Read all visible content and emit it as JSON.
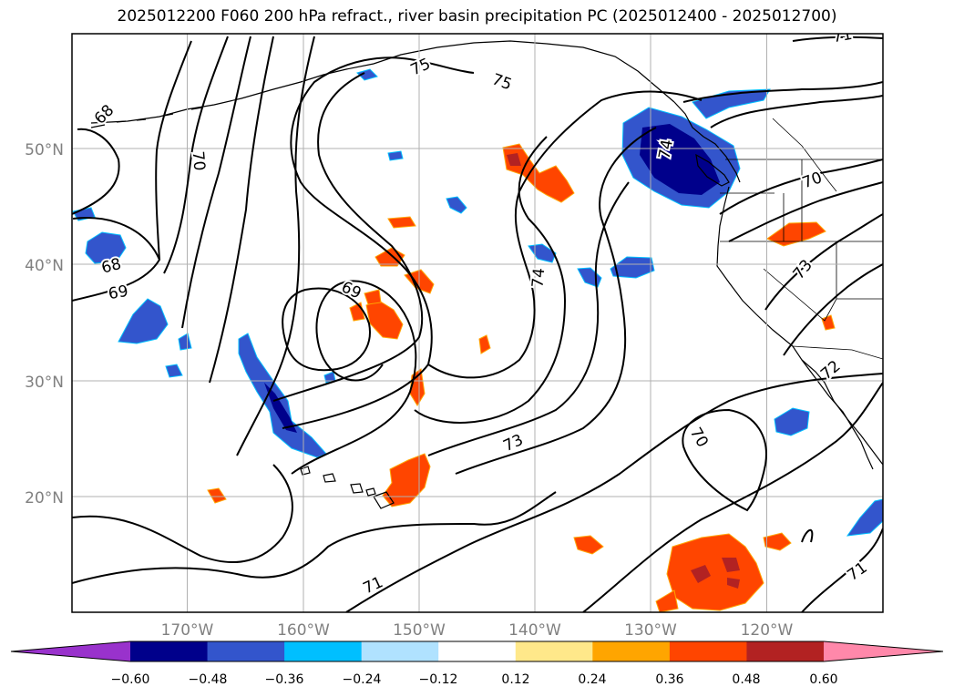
{
  "title": "2025012200 F060 200 hPa refract., river basin precipitation PC (2025012400 - 2025012700)",
  "map": {
    "lon_range": [
      -180,
      -110
    ],
    "lat_range": [
      10,
      60
    ],
    "lat_labels": [
      {
        "lat": 50,
        "text": "50°N"
      },
      {
        "lat": 40,
        "text": "40°N"
      },
      {
        "lat": 30,
        "text": "30°N"
      },
      {
        "lat": 20,
        "text": "20°N"
      }
    ],
    "lon_labels": [
      {
        "lon": -170,
        "text": "170°W"
      },
      {
        "lon": -160,
        "text": "160°W"
      },
      {
        "lon": -150,
        "text": "150°W"
      },
      {
        "lon": -140,
        "text": "140°W"
      },
      {
        "lon": -130,
        "text": "130°W"
      },
      {
        "lon": -120,
        "text": "120°W"
      }
    ],
    "contour_labels": [
      {
        "text": "68",
        "lon": -177.2,
        "lat": 53.0,
        "rot": -45
      },
      {
        "text": "70",
        "lon": -169.1,
        "lat": 49.0,
        "rot": 85
      },
      {
        "text": "75",
        "lon": -149.9,
        "lat": 57.1,
        "rot": -25
      },
      {
        "text": "75",
        "lon": -142.9,
        "lat": 55.8,
        "rot": 20
      },
      {
        "text": "68",
        "lon": -176.6,
        "lat": 39.9,
        "rot": -15
      },
      {
        "text": "69",
        "lon": -176.0,
        "lat": 37.6,
        "rot": -10
      },
      {
        "text": "69",
        "lon": -155.9,
        "lat": 37.8,
        "rot": 25
      },
      {
        "text": "74",
        "lon": -139.7,
        "lat": 38.9,
        "rot": -85
      },
      {
        "text": "74",
        "lon": -128.7,
        "lat": 50.0,
        "rot": -80
      },
      {
        "text": "70",
        "lon": -116.1,
        "lat": 47.3,
        "rot": -20
      },
      {
        "text": "73",
        "lon": -116.9,
        "lat": 39.6,
        "rot": -50
      },
      {
        "text": "72",
        "lon": -114.5,
        "lat": 30.9,
        "rot": -40
      },
      {
        "text": "73",
        "lon": -141.9,
        "lat": 24.6,
        "rot": -25
      },
      {
        "text": "70",
        "lon": -125.9,
        "lat": 25.1,
        "rot": 60
      },
      {
        "text": "71",
        "lon": -154.0,
        "lat": 12.3,
        "rot": -25
      },
      {
        "text": "71",
        "lon": -112.2,
        "lat": 13.5,
        "rot": -35
      },
      {
        "text": "71",
        "lon": -113.5,
        "lat": 59.8,
        "rot": -10
      }
    ]
  },
  "colorbar": {
    "ticks": [
      "−0.60",
      "−0.48",
      "−0.36",
      "−0.24",
      "−0.12",
      "0.12",
      "0.24",
      "0.36",
      "0.48",
      "0.60"
    ],
    "under_color": "#9932cc",
    "over_color": "#ff88aa",
    "colors": [
      "#00008b",
      "#3355cc",
      "#00bfff",
      "#b0e2ff",
      "#ffffff",
      "#ffe88a",
      "#ffa500",
      "#ff4500",
      "#b22222"
    ]
  }
}
